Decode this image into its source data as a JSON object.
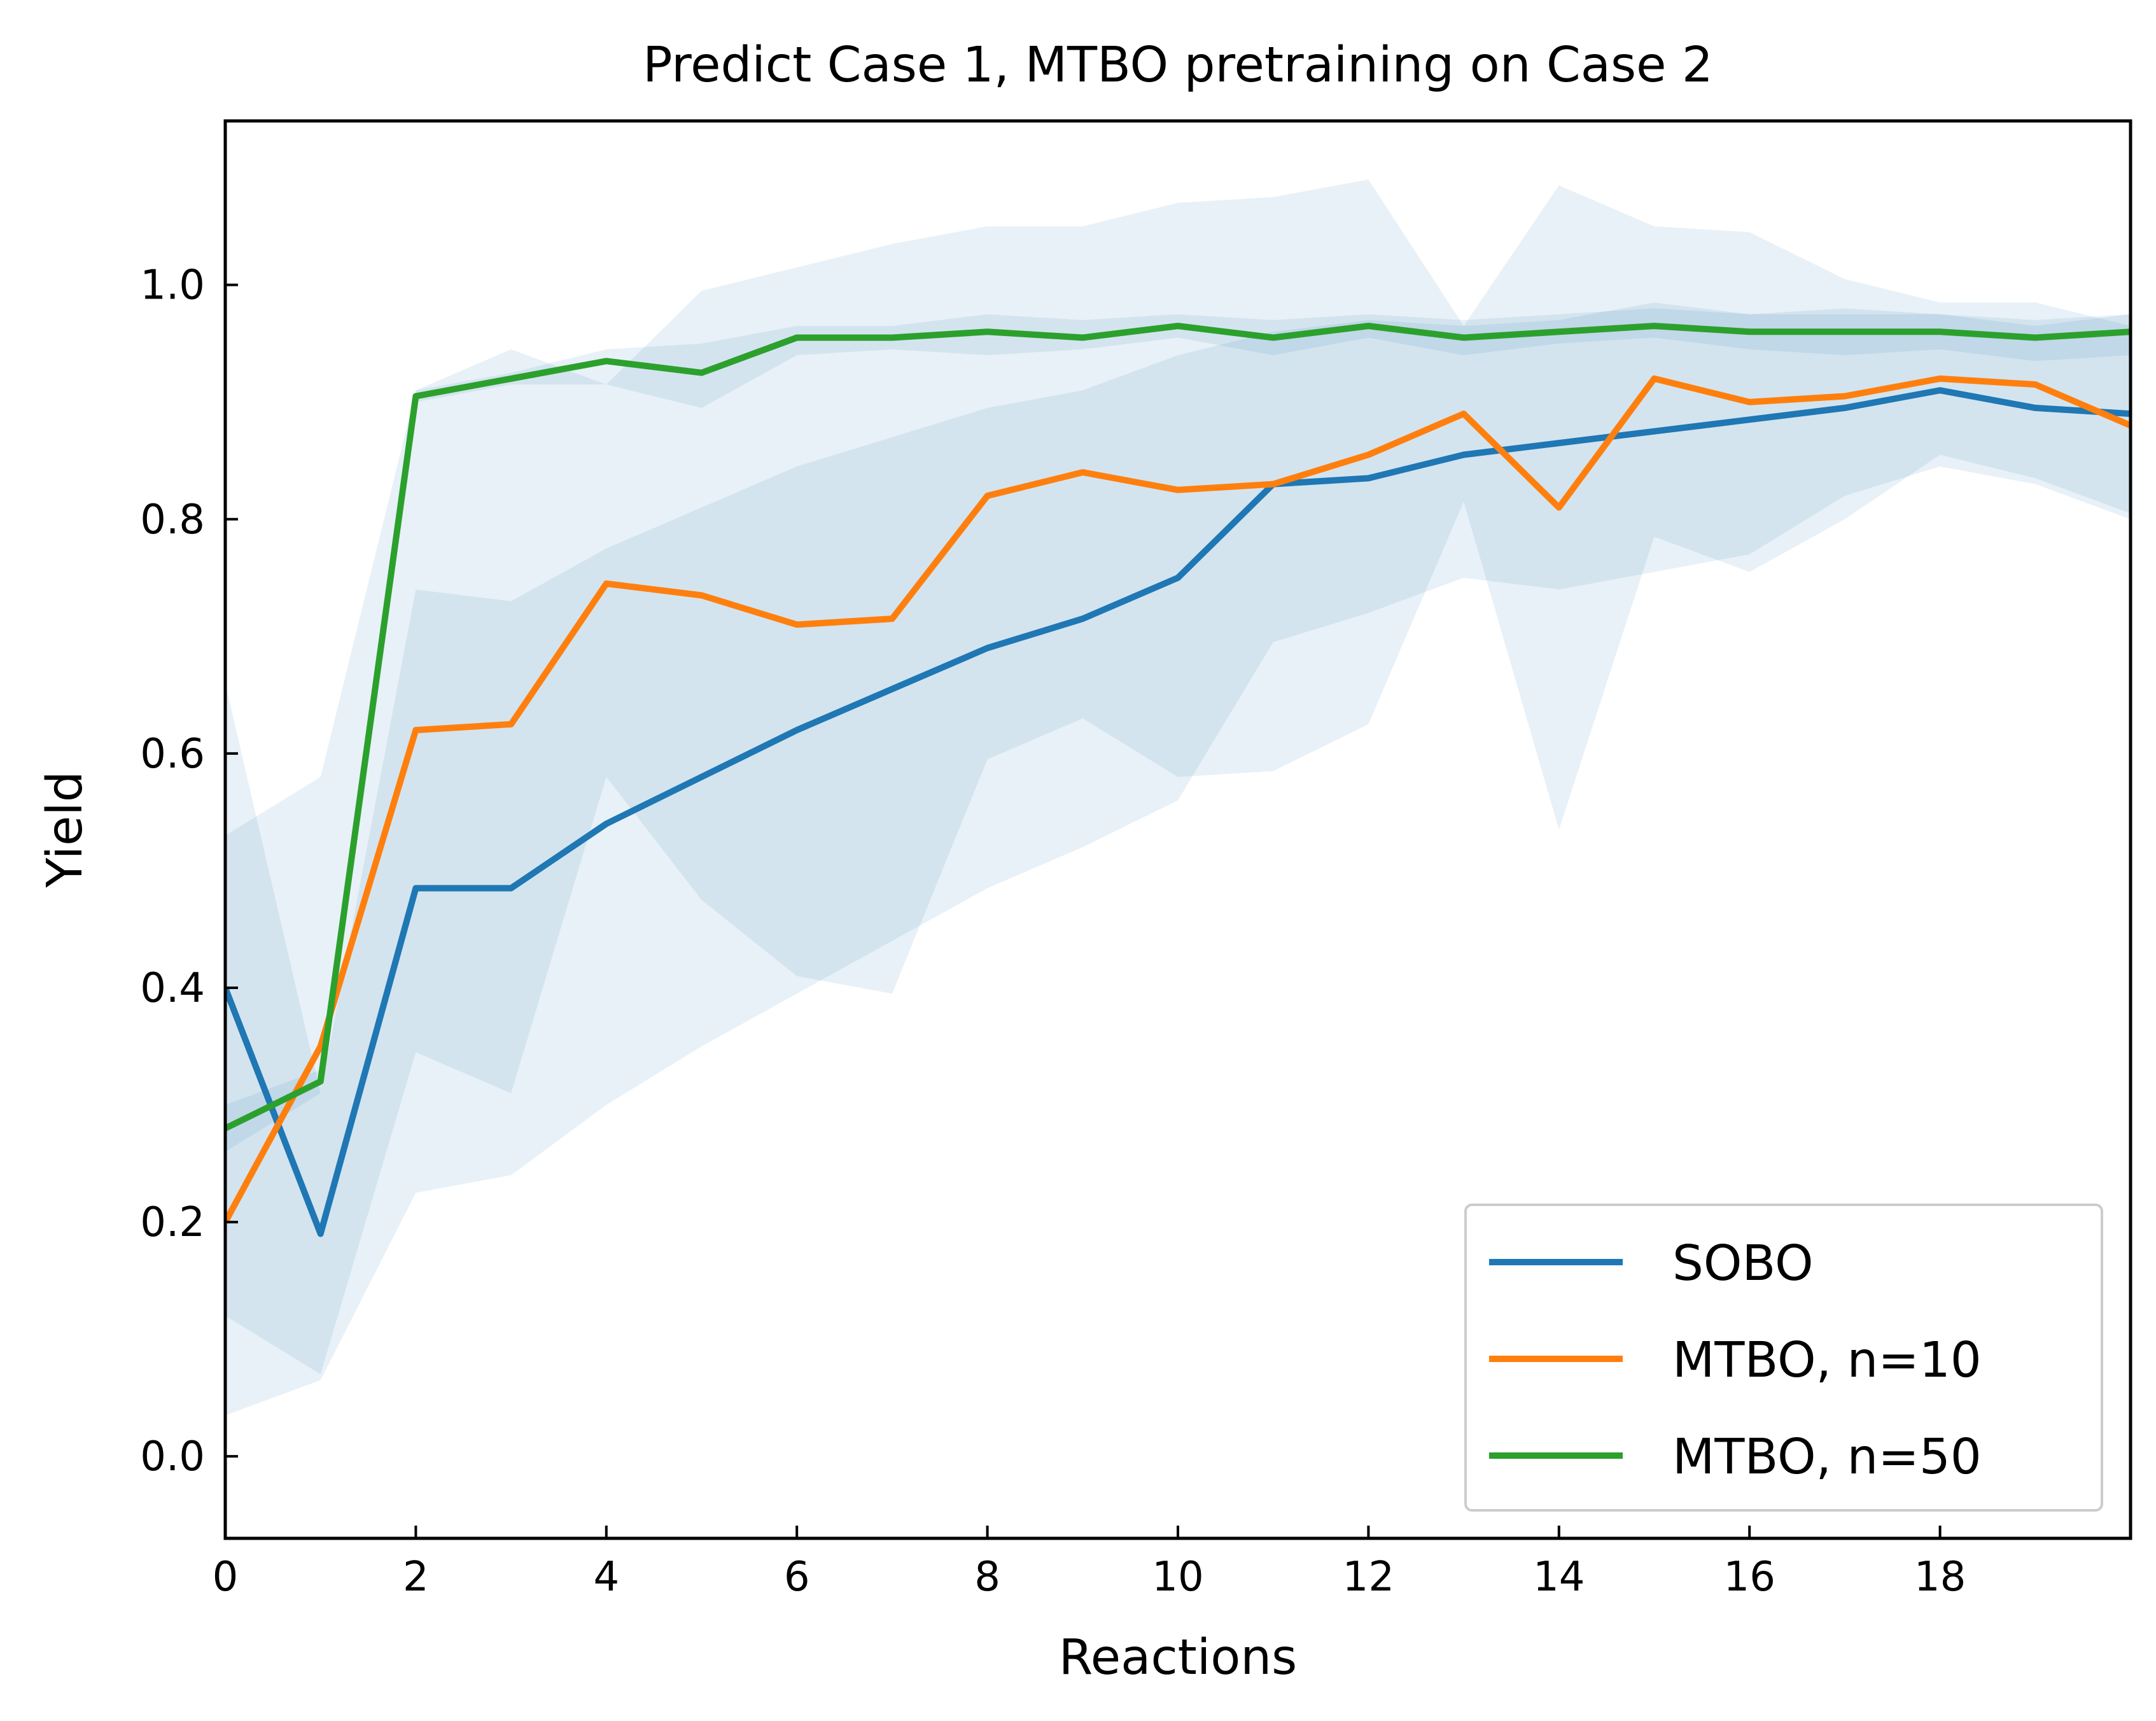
{
  "chart_data": {
    "type": "line",
    "title": "Predict Case 1, MTBO pretraining on Case 2",
    "xlabel": "Reactions",
    "ylabel": "Yield",
    "xlim": [
      0,
      20
    ],
    "ylim": [
      -0.07,
      1.14
    ],
    "x_ticks": [
      0,
      2,
      4,
      6,
      8,
      10,
      12,
      14,
      16,
      18
    ],
    "x_tick_labels": [
      "0",
      "2",
      "4",
      "6",
      "8",
      "10",
      "12",
      "14",
      "16",
      "18"
    ],
    "y_ticks": [
      0.0,
      0.2,
      0.4,
      0.6,
      0.8,
      1.0
    ],
    "y_tick_labels": [
      "0.0",
      "0.2",
      "0.4",
      "0.6",
      "0.8",
      "1.0"
    ],
    "grid": false,
    "legend_position": "lower-right",
    "x": [
      0,
      1,
      2,
      3,
      4,
      5,
      6,
      7,
      8,
      9,
      10,
      11,
      12,
      13,
      14,
      15,
      16,
      17,
      18,
      19,
      20
    ],
    "series": [
      {
        "name": "SOBO",
        "color": "#1f77b4",
        "values": [
          0.4,
          0.19,
          0.485,
          0.485,
          0.54,
          0.58,
          0.62,
          0.655,
          0.69,
          0.715,
          0.75,
          0.83,
          0.835,
          0.855,
          0.865,
          0.875,
          0.885,
          0.895,
          0.91,
          0.895,
          0.89
        ],
        "band_lower": [
          0.12,
          0.07,
          0.345,
          0.31,
          0.58,
          0.475,
          0.41,
          0.395,
          0.595,
          0.63,
          0.58,
          0.585,
          0.625,
          0.815,
          0.535,
          0.785,
          0.755,
          0.8,
          0.855,
          0.835,
          0.805
        ],
        "band_upper": [
          0.66,
          0.31,
          0.74,
          0.73,
          0.775,
          0.81,
          0.845,
          0.87,
          0.895,
          0.91,
          0.94,
          0.96,
          0.97,
          0.965,
          0.97,
          0.985,
          0.975,
          0.98,
          0.975,
          0.965,
          0.975
        ]
      },
      {
        "name": "MTBO, n=10",
        "color": "#ff7f0e",
        "values": [
          0.2,
          0.35,
          0.62,
          0.625,
          0.745,
          0.735,
          0.71,
          0.715,
          0.82,
          0.84,
          0.825,
          0.83,
          0.855,
          0.89,
          0.81,
          0.92,
          0.9,
          0.905,
          0.92,
          0.915,
          0.88
        ],
        "band_lower": [
          0.035,
          0.065,
          0.225,
          0.24,
          0.3,
          0.35,
          0.395,
          0.44,
          0.485,
          0.52,
          0.56,
          0.695,
          0.72,
          0.75,
          0.74,
          0.755,
          0.77,
          0.82,
          0.845,
          0.83,
          0.8
        ],
        "band_upper": [
          0.53,
          0.58,
          0.91,
          0.945,
          0.915,
          0.995,
          1.015,
          1.035,
          1.05,
          1.05,
          1.07,
          1.075,
          1.09,
          0.965,
          1.085,
          1.05,
          1.045,
          1.005,
          0.985,
          0.985,
          0.965
        ]
      },
      {
        "name": "MTBO, n=50",
        "color": "#2ca02c",
        "values": [
          0.28,
          0.32,
          0.905,
          0.92,
          0.935,
          0.925,
          0.955,
          0.955,
          0.96,
          0.955,
          0.965,
          0.955,
          0.965,
          0.955,
          0.96,
          0.965,
          0.96,
          0.96,
          0.96,
          0.955,
          0.96
        ],
        "band_lower": [
          0.26,
          0.31,
          0.9,
          0.915,
          0.915,
          0.895,
          0.94,
          0.945,
          0.94,
          0.945,
          0.955,
          0.94,
          0.955,
          0.94,
          0.95,
          0.955,
          0.945,
          0.94,
          0.945,
          0.935,
          0.94
        ],
        "band_upper": [
          0.3,
          0.33,
          0.91,
          0.925,
          0.945,
          0.95,
          0.965,
          0.965,
          0.975,
          0.97,
          0.975,
          0.97,
          0.975,
          0.97,
          0.975,
          0.98,
          0.975,
          0.975,
          0.975,
          0.97,
          0.975
        ]
      }
    ]
  }
}
